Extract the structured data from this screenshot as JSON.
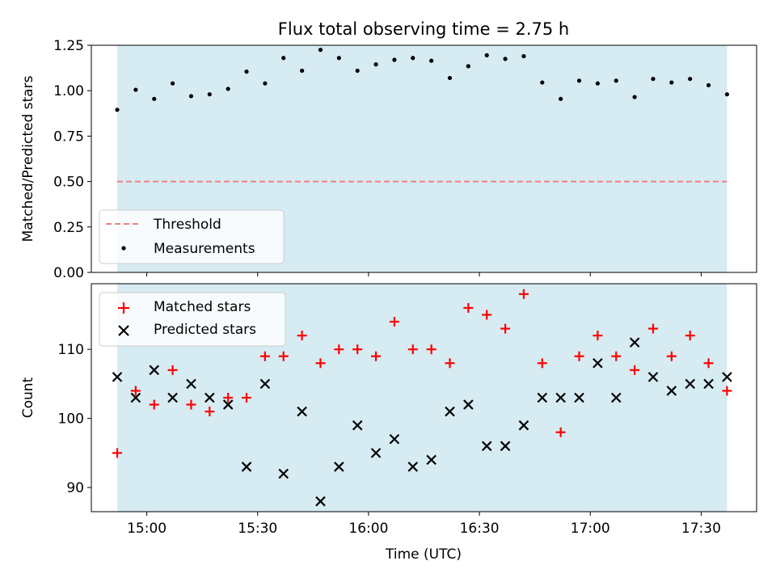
{
  "figure": {
    "title": "Flux total observing time = 2.75 h",
    "xlabel": "Time (UTC)"
  },
  "colors": {
    "shade": "#add8e6",
    "threshold": "#f08080",
    "matched": "#ff0000",
    "predicted": "#000000",
    "measurement": "#000000"
  },
  "chart_data": [
    {
      "type": "scatter",
      "panel": "top",
      "ylabel": "Matched/Predicted stars",
      "ylim": [
        0.0,
        1.25
      ],
      "yticks": [
        0.0,
        0.25,
        0.5,
        0.75,
        1.0,
        1.25
      ],
      "ytick_labels": [
        "0.00",
        "0.25",
        "0.50",
        "0.75",
        "1.00",
        "1.25"
      ],
      "shaded_span": [
        "14:52",
        "17:37"
      ],
      "threshold": 0.5,
      "legend": {
        "placement": "lower-left",
        "entries": [
          "Threshold",
          "Measurements"
        ]
      },
      "series": [
        {
          "name": "Measurements",
          "marker": "dot",
          "x": [
            "14:52",
            "14:57",
            "15:02",
            "15:07",
            "15:12",
            "15:17",
            "15:22",
            "15:27",
            "15:32",
            "15:37",
            "15:42",
            "15:47",
            "15:52",
            "15:57",
            "16:02",
            "16:07",
            "16:12",
            "16:17",
            "16:22",
            "16:27",
            "16:32",
            "16:37",
            "16:42",
            "16:47",
            "16:52",
            "16:57",
            "17:02",
            "17:07",
            "17:12",
            "17:17",
            "17:22",
            "17:27",
            "17:32",
            "17:37"
          ],
          "y": [
            0.895,
            1.005,
            0.955,
            1.04,
            0.97,
            0.98,
            1.01,
            1.105,
            1.04,
            1.18,
            1.11,
            1.225,
            1.18,
            1.11,
            1.145,
            1.17,
            1.18,
            1.165,
            1.07,
            1.135,
            1.195,
            1.175,
            1.19,
            1.045,
            0.955,
            1.055,
            1.04,
            1.055,
            0.965,
            1.065,
            1.045,
            1.065,
            1.03,
            0.98
          ]
        },
        {
          "name": "Threshold",
          "style": "dashed",
          "x": [
            "14:52",
            "17:37"
          ],
          "y": [
            0.5,
            0.5
          ]
        }
      ]
    },
    {
      "type": "scatter",
      "panel": "bottom",
      "ylabel": "Count",
      "ylim": [
        86.5,
        119.5
      ],
      "yticks": [
        90,
        100,
        110
      ],
      "ytick_labels": [
        "90",
        "100",
        "110"
      ],
      "xticks": [
        "15:00",
        "15:30",
        "16:00",
        "16:30",
        "17:00",
        "17:30"
      ],
      "shaded_span": [
        "14:52",
        "17:37"
      ],
      "legend": {
        "placement": "upper-left",
        "entries": [
          "Matched stars",
          "Predicted stars"
        ]
      },
      "series": [
        {
          "name": "Matched stars",
          "marker": "plus",
          "x": [
            "14:52",
            "14:57",
            "15:02",
            "15:07",
            "15:12",
            "15:17",
            "15:22",
            "15:27",
            "15:32",
            "15:37",
            "15:42",
            "15:47",
            "15:52",
            "15:57",
            "16:02",
            "16:07",
            "16:12",
            "16:17",
            "16:22",
            "16:27",
            "16:32",
            "16:37",
            "16:42",
            "16:47",
            "16:52",
            "16:57",
            "17:02",
            "17:07",
            "17:12",
            "17:17",
            "17:22",
            "17:27",
            "17:32",
            "17:37"
          ],
          "y": [
            95,
            104,
            102,
            107,
            102,
            101,
            103,
            103,
            109,
            109,
            112,
            108,
            110,
            110,
            109,
            114,
            110,
            110,
            108,
            116,
            115,
            113,
            118,
            108,
            98,
            109,
            112,
            109,
            107,
            113,
            109,
            112,
            108,
            104
          ]
        },
        {
          "name": "Predicted stars",
          "marker": "x",
          "x": [
            "14:52",
            "14:57",
            "15:02",
            "15:07",
            "15:12",
            "15:17",
            "15:22",
            "15:27",
            "15:32",
            "15:37",
            "15:42",
            "15:47",
            "15:52",
            "15:57",
            "16:02",
            "16:07",
            "16:12",
            "16:17",
            "16:22",
            "16:27",
            "16:32",
            "16:37",
            "16:42",
            "16:47",
            "16:52",
            "16:57",
            "17:02",
            "17:07",
            "17:12",
            "17:17",
            "17:22",
            "17:27",
            "17:32",
            "17:37"
          ],
          "y": [
            106,
            103,
            107,
            103,
            105,
            103,
            102,
            93,
            105,
            92,
            101,
            88,
            93,
            99,
            95,
            97,
            93,
            94,
            101,
            102,
            96,
            96,
            99,
            103,
            103,
            103,
            108,
            103,
            111,
            106,
            104,
            105,
            105,
            106
          ]
        }
      ]
    }
  ]
}
